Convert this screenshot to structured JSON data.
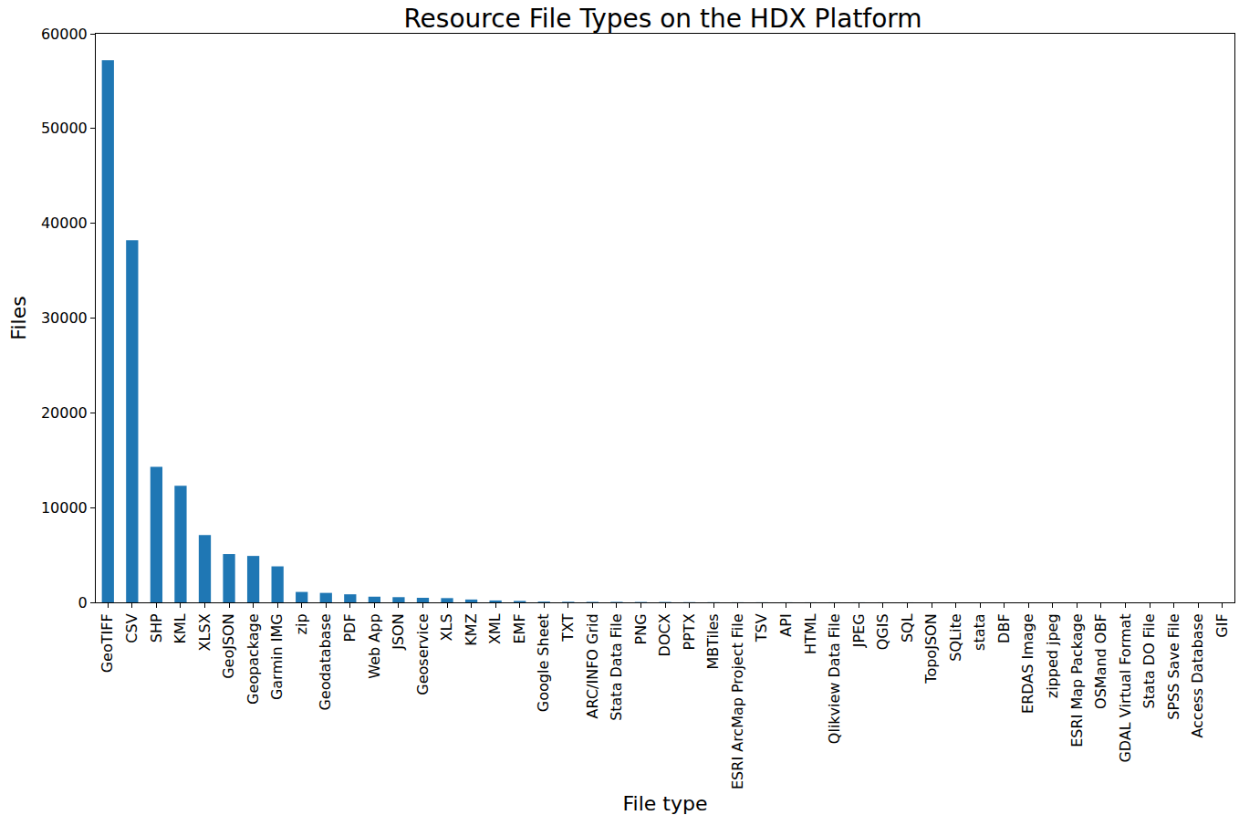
{
  "chart_data": {
    "type": "bar",
    "title": "Resource File Types on the HDX Platform",
    "x_label": "File type",
    "y_label": "Files",
    "categories": [
      "GeoTIFF",
      "CSV",
      "SHP",
      "KML",
      "XLSX",
      "GeoJSON",
      "Geopackage",
      "Garmin IMG",
      "zip",
      "Geodatabase",
      "PDF",
      "Web App",
      "JSON",
      "Geoservice",
      "XLS",
      "KMZ",
      "XML",
      "EMF",
      "Google Sheet",
      "TXT",
      "ARC/INFO Grid",
      "Stata Data File",
      "PNG",
      "DOCX",
      "PPTX",
      "MBTiles",
      "ESRI ArcMap Project File",
      "TSV",
      "API",
      "HTML",
      "Qlikview Data File",
      "JPEG",
      "QGIS",
      "SQL",
      "TopoJSON",
      "SQLite",
      "stata",
      "DBF",
      "ERDAS Image",
      "zipped jpeg",
      "ESRI Map Package",
      "OSMand OBF",
      "GDAL Virtual Format",
      "Stata DO File",
      "SPSS Save File",
      "Access Database",
      "GIF"
    ],
    "values": [
      57200,
      38200,
      14300,
      12300,
      7100,
      5100,
      4900,
      3800,
      1100,
      1000,
      850,
      600,
      550,
      480,
      450,
      300,
      200,
      150,
      80,
      60,
      50,
      50,
      40,
      40,
      20,
      15,
      10,
      10,
      8,
      7,
      6,
      5,
      4,
      4,
      3,
      3,
      3,
      2,
      2,
      2,
      1,
      1,
      1,
      1,
      1,
      1,
      1
    ],
    "color": "#1f77b4",
    "ylim": [
      0,
      60000
    ],
    "yticks": [
      0,
      10000,
      20000,
      30000,
      40000,
      50000,
      60000
    ],
    "grid": false
  }
}
